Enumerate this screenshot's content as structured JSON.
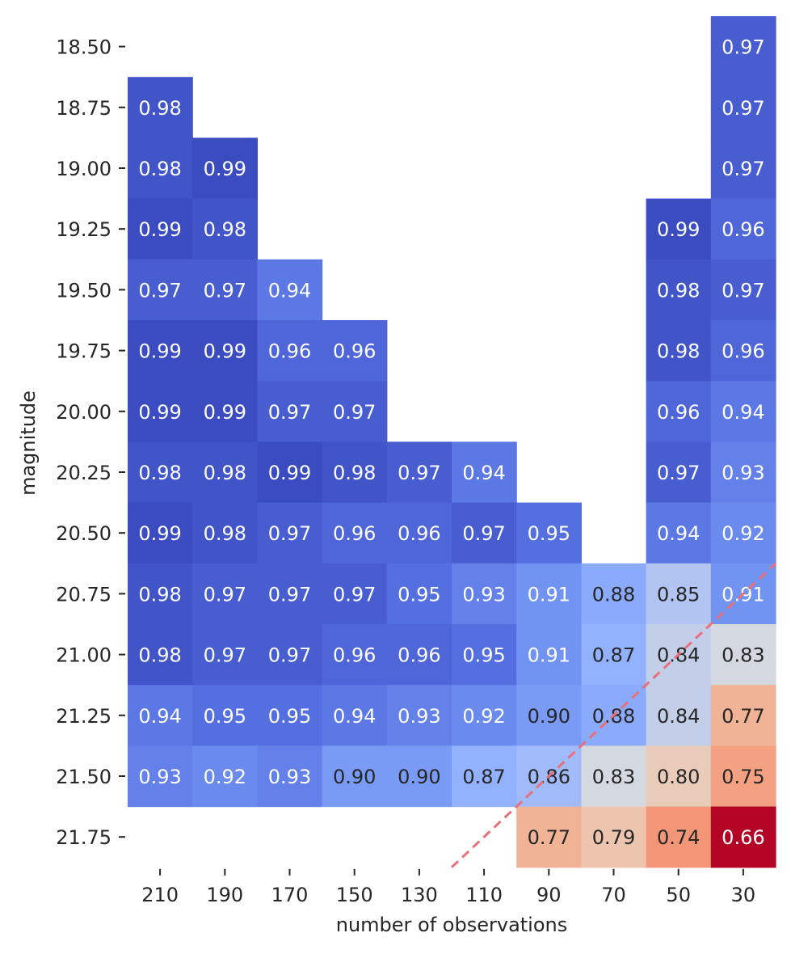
{
  "chart_data": {
    "type": "heatmap",
    "title": "",
    "xlabel": "number of observations",
    "ylabel": "magnitude",
    "x_categories": [
      "210",
      "190",
      "170",
      "150",
      "130",
      "110",
      "90",
      "70",
      "50",
      "30"
    ],
    "y_categories": [
      "18.50",
      "18.75",
      "19.00",
      "19.25",
      "19.50",
      "19.75",
      "20.00",
      "20.25",
      "20.50",
      "20.75",
      "21.00",
      "21.25",
      "21.50",
      "21.75"
    ],
    "values": [
      [
        null,
        null,
        null,
        null,
        null,
        null,
        null,
        null,
        null,
        0.97
      ],
      [
        0.98,
        null,
        null,
        null,
        null,
        null,
        null,
        null,
        null,
        0.97
      ],
      [
        0.98,
        0.99,
        null,
        null,
        null,
        null,
        null,
        null,
        null,
        0.97
      ],
      [
        0.99,
        0.98,
        null,
        null,
        null,
        null,
        null,
        null,
        0.99,
        0.96
      ],
      [
        0.97,
        0.97,
        0.94,
        null,
        null,
        null,
        null,
        null,
        0.98,
        0.97
      ],
      [
        0.99,
        0.99,
        0.96,
        0.96,
        null,
        null,
        null,
        null,
        0.98,
        0.96
      ],
      [
        0.99,
        0.99,
        0.97,
        0.97,
        null,
        null,
        null,
        null,
        0.96,
        0.94
      ],
      [
        0.98,
        0.98,
        0.99,
        0.98,
        0.97,
        0.94,
        null,
        null,
        0.97,
        0.93
      ],
      [
        0.99,
        0.98,
        0.97,
        0.96,
        0.96,
        0.97,
        0.95,
        null,
        0.94,
        0.92
      ],
      [
        0.98,
        0.97,
        0.97,
        0.97,
        0.95,
        0.93,
        0.91,
        0.88,
        0.85,
        0.91
      ],
      [
        0.98,
        0.97,
        0.97,
        0.96,
        0.96,
        0.95,
        0.91,
        0.87,
        0.84,
        0.83
      ],
      [
        0.94,
        0.95,
        0.95,
        0.94,
        0.93,
        0.92,
        0.9,
        0.88,
        0.84,
        0.77
      ],
      [
        0.93,
        0.92,
        0.93,
        0.9,
        0.9,
        0.87,
        0.86,
        0.83,
        0.8,
        0.75
      ],
      [
        null,
        null,
        null,
        null,
        null,
        null,
        0.77,
        0.79,
        0.74,
        0.66
      ]
    ],
    "colormap": "coolwarm_r",
    "color_range": [
      0.66,
      0.99
    ],
    "annotations": true,
    "colorbar": false,
    "reference_line": {
      "style": "dashed",
      "color": "#e8707a",
      "from": {
        "x": "120",
        "y": "21.875"
      },
      "to": {
        "x": "20",
        "y": "20.625"
      }
    }
  }
}
